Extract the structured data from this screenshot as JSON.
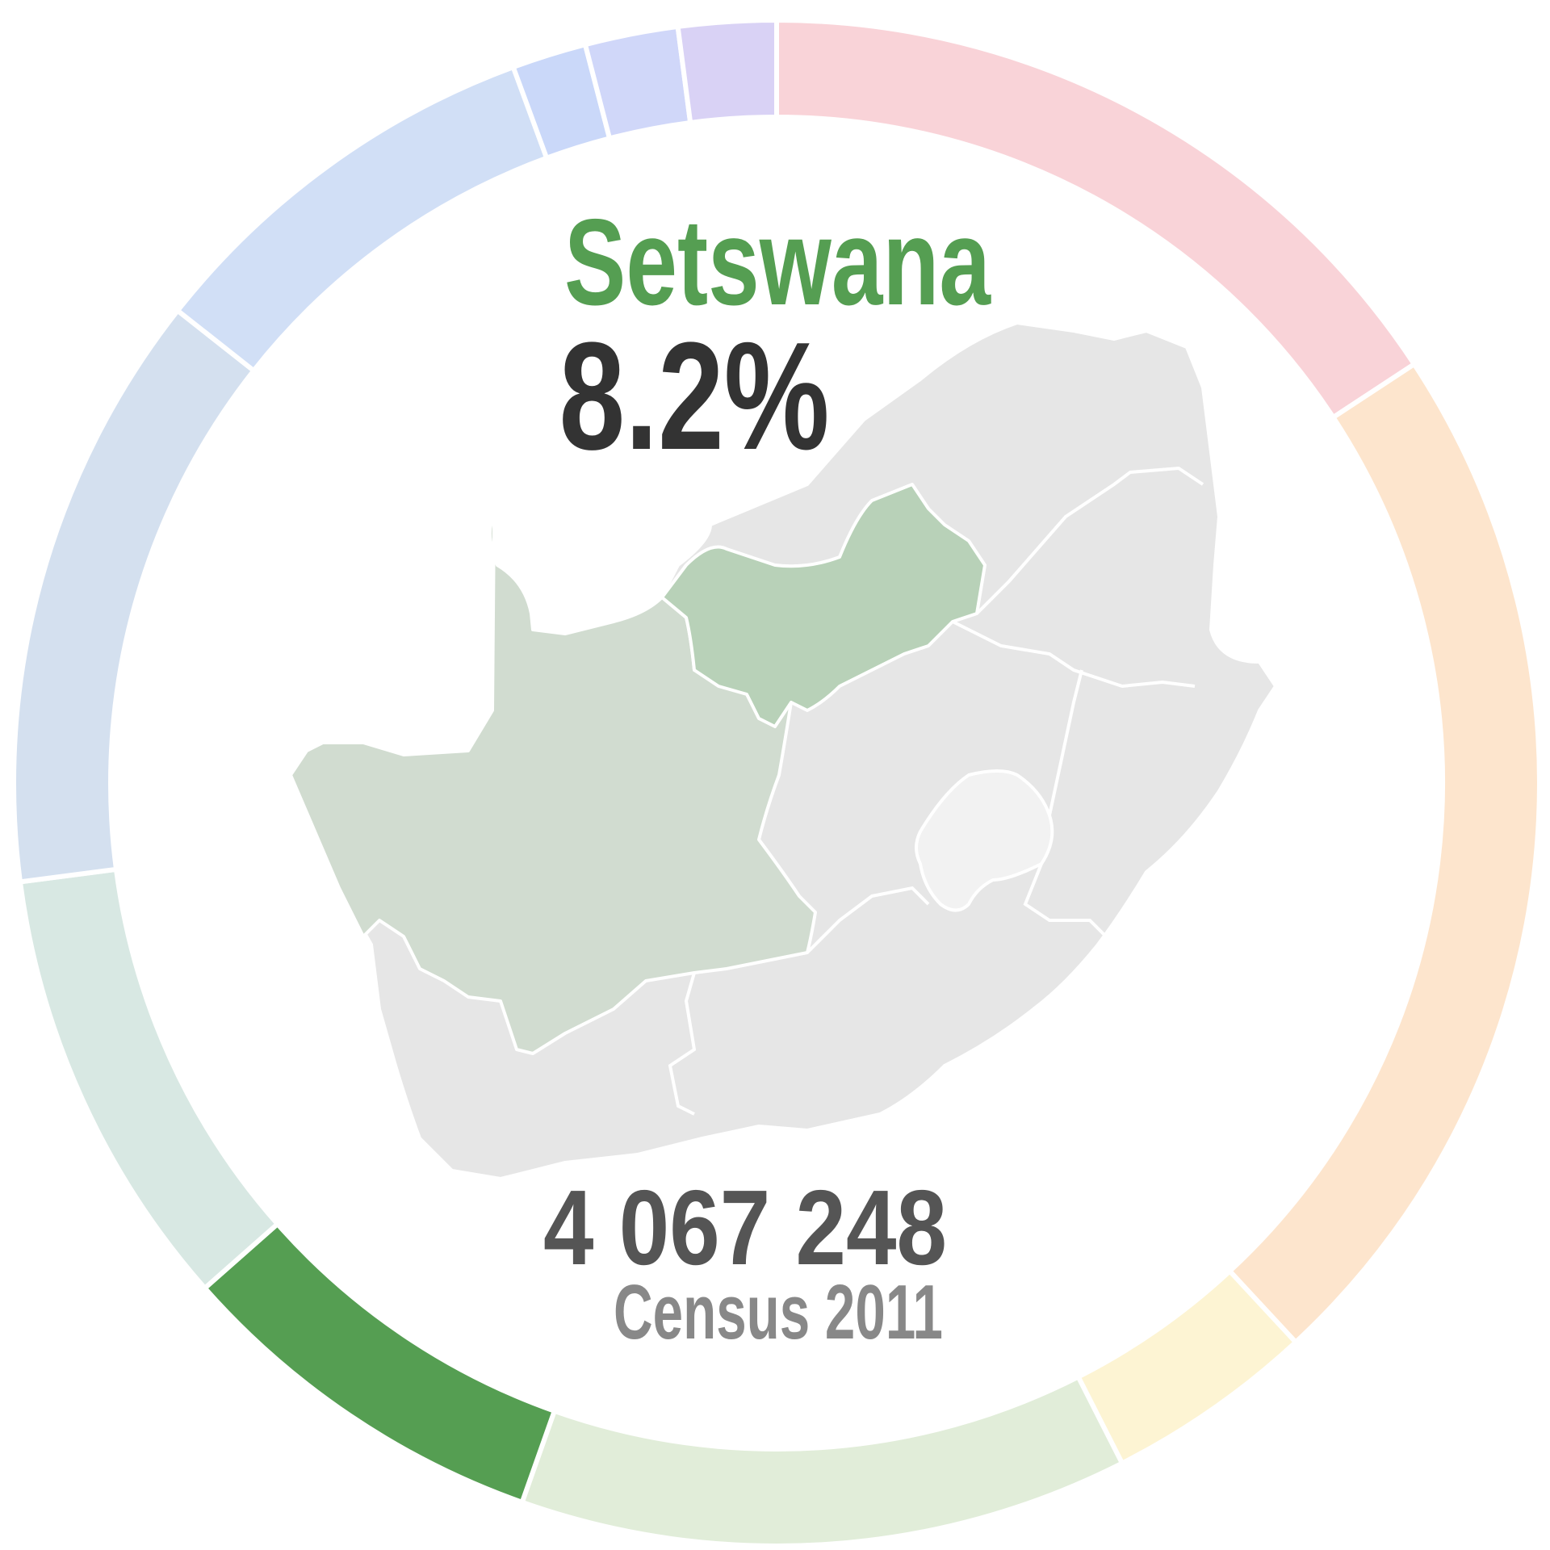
{
  "headline": {
    "language": "Setswana",
    "percentage": "8.2%",
    "speakers": "4 067 248",
    "source": "Census 2011"
  },
  "colors": {
    "highlight": "#559e52",
    "highlight_region": "#b8d1b8",
    "secondary_region": "#d1dcd0",
    "other_region": "#e6e6e6",
    "lesotho": "#f2f2f2",
    "title_text": "#559e52",
    "percent_text": "#333333",
    "count_text": "#555555",
    "source_text": "#888888"
  },
  "chart_data": {
    "type": "pie",
    "variant": "donut",
    "start": "top",
    "direction": "clockwise",
    "highlighted_slice": 5,
    "slices": [
      {
        "value": 16.0,
        "color": "#f9d3d8"
      },
      {
        "value": 22.7,
        "color": "#fde5cd"
      },
      {
        "value": 4.5,
        "color": "#fdf4d3"
      },
      {
        "value": 13.1,
        "color": "#e1edd9"
      },
      {
        "value": 8.2,
        "color": "#559e52"
      },
      {
        "value": 9.6,
        "color": "#d8e8e3"
      },
      {
        "value": 12.9,
        "color": "#d4e0ef"
      },
      {
        "value": 8.9,
        "color": "#d1dff6"
      },
      {
        "value": 1.6,
        "color": "#cad8f9"
      },
      {
        "value": 2.0,
        "color": "#d0d7f9"
      },
      {
        "value": 2.1,
        "color": "#d9d2f5"
      }
    ]
  }
}
